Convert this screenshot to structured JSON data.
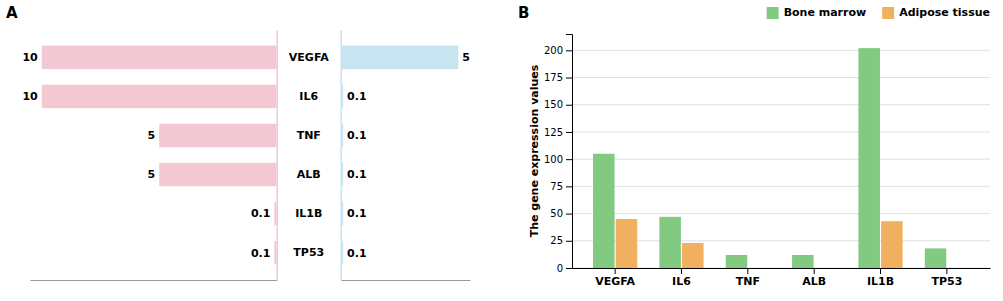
{
  "chart_data": [
    {
      "type": "bar",
      "orientation": "horizontal",
      "title": "A",
      "categories": [
        "VEGFA",
        "IL6",
        "TNF",
        "ALB",
        "IL1B",
        "TP53"
      ],
      "values": [
        10,
        10,
        5,
        5,
        0.1,
        0.1
      ],
      "color": "#f2c8d2",
      "xlim": [
        10.5,
        0
      ],
      "data_labels": true,
      "tick_labels": "y"
    },
    {
      "type": "bar",
      "orientation": "horizontal",
      "categories": [
        null,
        null,
        null,
        null,
        null,
        null
      ],
      "values": [
        5,
        0.1,
        0.1,
        0.1,
        0.1,
        0.1
      ],
      "color": "#c8e4f0",
      "xlim": [
        0,
        5.5
      ],
      "data_labels": true,
      "tick_labels": false
    },
    {
      "type": "bar",
      "title": "B",
      "categories": [
        "VEGFA",
        "IL6",
        "TNF",
        "ALB",
        "IL1B",
        "TP53"
      ],
      "series": [
        {
          "name": "Bone marrow",
          "color": "#82c982",
          "values": [
            105,
            47,
            12,
            12,
            202,
            18
          ]
        },
        {
          "name": "Adipose tissue",
          "color": "#f0b060",
          "values": [
            45,
            23,
            0,
            0,
            43,
            0
          ]
        }
      ],
      "ylabel": "The gene expression values",
      "ylim": [
        0,
        215
      ],
      "yticks": [
        0,
        25,
        50,
        75,
        100,
        125,
        150,
        175,
        200
      ],
      "grid": true,
      "legend": "upper right"
    }
  ]
}
